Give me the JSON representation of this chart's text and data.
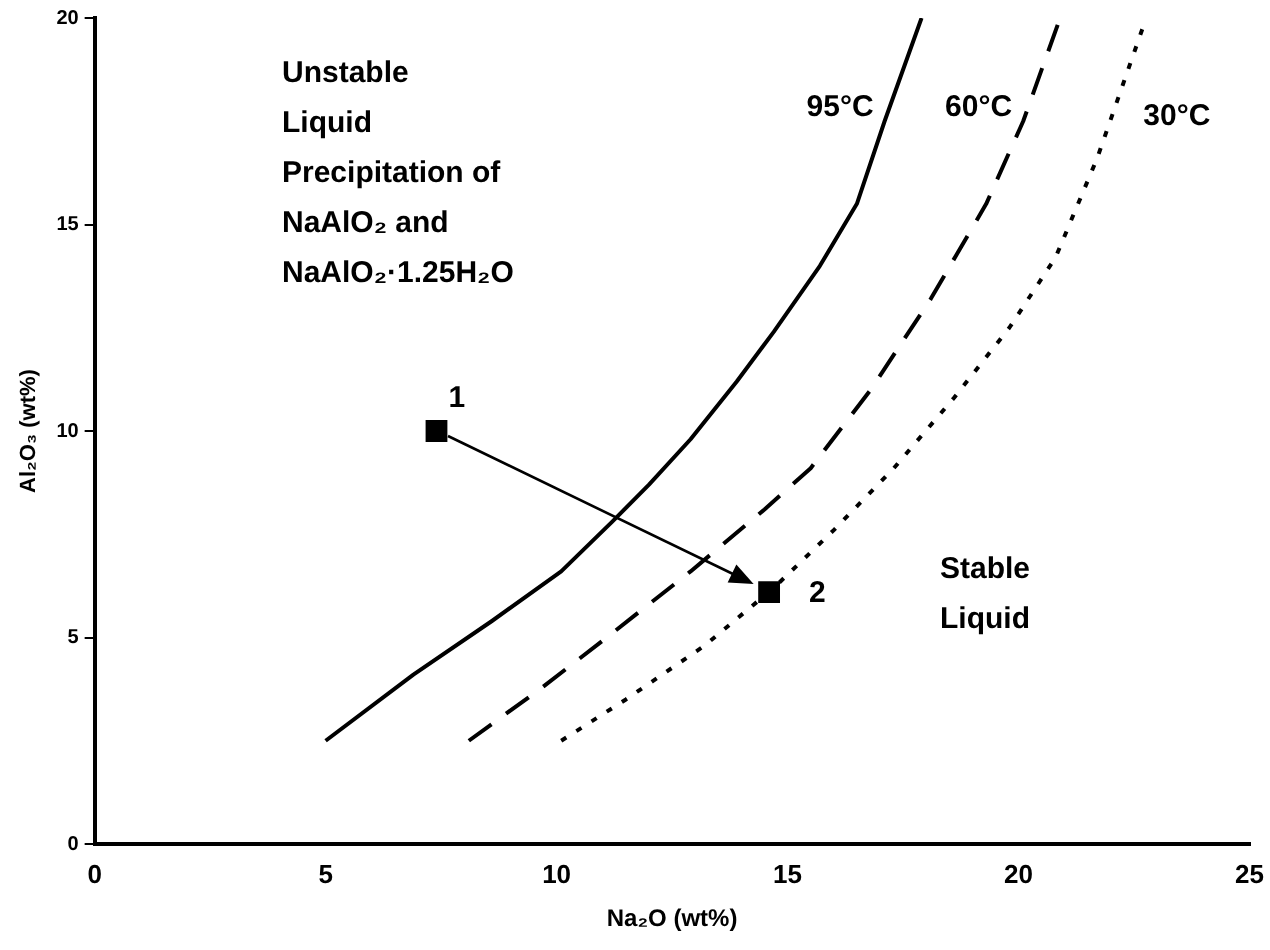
{
  "chart_data": {
    "type": "line",
    "xlabel": "Na₂O (wt%)",
    "ylabel": "Al₂O₃ (wt%)",
    "xlim": [
      0,
      25
    ],
    "ylim": [
      0,
      20
    ],
    "xticks": [
      0,
      5,
      10,
      15,
      20,
      25
    ],
    "yticks": [
      0,
      5,
      10,
      15,
      20
    ],
    "grid": false,
    "series": [
      {
        "name": "95°C",
        "color": "#000000",
        "line_style": "solid",
        "marker": "none",
        "x": [
          5,
          6.9,
          8.6,
          10.1,
          11.2,
          12.0,
          12.9,
          13.9,
          14.7,
          15.7,
          16.5,
          17.1,
          17.9
        ],
        "values": [
          2.5,
          4.1,
          5.4,
          6.6,
          7.8,
          8.7,
          9.8,
          11.2,
          12.4,
          14.0,
          15.5,
          17.5,
          20.0
        ]
      },
      {
        "name": "60°C",
        "color": "#000000",
        "line_style": "dashed",
        "marker": "none",
        "x": [
          8.1,
          9.7,
          11.2,
          12.9,
          14.5,
          15.5,
          16.8,
          18.1,
          19.3,
          20.1,
          20.9
        ],
        "values": [
          2.5,
          3.8,
          5.1,
          6.6,
          8.1,
          9.1,
          11.0,
          13.2,
          15.5,
          17.5,
          20.0
        ]
      },
      {
        "name": "30°C",
        "color": "#000000",
        "line_style": "dotted",
        "marker": "none",
        "x": [
          10.1,
          11.5,
          13.2,
          14.7,
          16.0,
          17.3,
          18.6,
          19.8,
          20.8,
          21.7,
          22.7
        ],
        "values": [
          2.5,
          3.5,
          4.8,
          6.2,
          7.6,
          9.1,
          10.8,
          12.5,
          14.2,
          16.6,
          19.8
        ]
      },
      {
        "type": "scatter",
        "color": "#000000",
        "marker": "square",
        "x": [
          7.4,
          14.6
        ],
        "values": [
          10.0,
          6.1
        ]
      }
    ],
    "annotations": [
      "Unstable\nLiquid\nPrecipitation of\nNaAlO₂ and\nNaAlO₂·1.25H₂O",
      "Stable\nLiquid",
      {
        "text": "1",
        "x": 7.4,
        "y": 10.0
      },
      {
        "text": "2",
        "x": 14.6,
        "y": 6.1
      }
    ]
  }
}
